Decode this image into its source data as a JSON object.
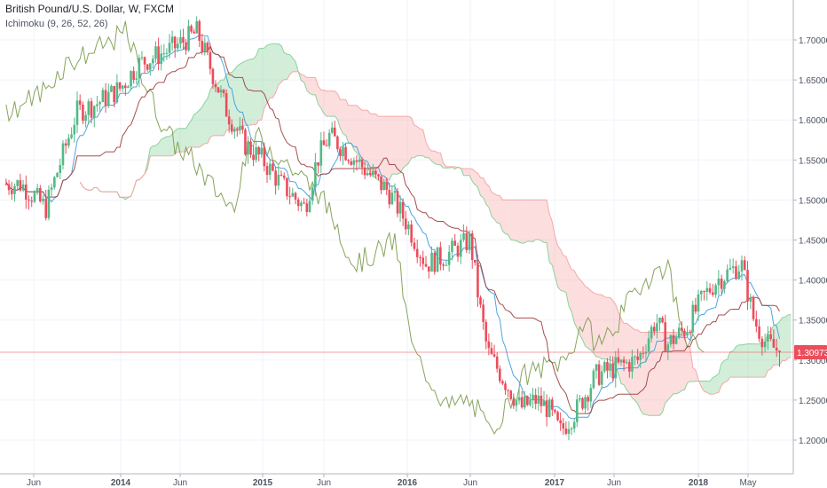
{
  "header": {
    "title": "British Pound/U.S. Dollar, W, FXCM",
    "indicator": "Ichimoku (9, 26, 52, 26)"
  },
  "colors": {
    "bull": "#53b987",
    "bear": "#eb4d5c",
    "tenkan": "#3e9adf",
    "kijun": "#9b3b3b",
    "chikou": "#7a9a4a",
    "cloud_bull": "#7fcf93",
    "cloud_bear": "#f6a0a0",
    "price_line": "#eb4d5c",
    "grid": "#f0f3fa",
    "axis_text": "#4c525e"
  },
  "chart_data": {
    "type": "candlestick",
    "title": "British Pound/U.S. Dollar, W, FXCM",
    "indicator": "Ichimoku (9, 26, 52, 26)",
    "ylim": [
      1.16,
      1.76
    ],
    "y_ticks": [
      "1.70000",
      "1.65000",
      "1.60000",
      "1.55000",
      "1.50000",
      "1.45000",
      "1.40000",
      "1.35000",
      "1.30000",
      "1.25000",
      "1.20000"
    ],
    "x_ticks": [
      "Jun",
      "2014",
      "Jun",
      "2015",
      "Jun",
      "2016",
      "Jun",
      "2017",
      "Jun",
      "2018",
      "May"
    ],
    "last_price": "1.30973",
    "close_path": [
      [
        "2013-04-01",
        1.52
      ],
      [
        "2013-05-01",
        1.52
      ],
      [
        "2013-07-01",
        1.49
      ],
      [
        "2013-08-01",
        1.54
      ],
      [
        "2013-09-15",
        1.61
      ],
      [
        "2013-11-01",
        1.62
      ],
      [
        "2014-01-01",
        1.64
      ],
      [
        "2014-02-15",
        1.67
      ],
      [
        "2014-04-01",
        1.68
      ],
      [
        "2014-05-15",
        1.69
      ],
      [
        "2014-07-15",
        1.71
      ],
      [
        "2014-08-15",
        1.67
      ],
      [
        "2014-10-01",
        1.61
      ],
      [
        "2014-11-15",
        1.57
      ],
      [
        "2015-01-01",
        1.55
      ],
      [
        "2015-02-15",
        1.52
      ],
      [
        "2015-04-15",
        1.49
      ],
      [
        "2015-05-15",
        1.55
      ],
      [
        "2015-06-15",
        1.58
      ],
      [
        "2015-08-01",
        1.56
      ],
      [
        "2015-10-01",
        1.53
      ],
      [
        "2015-11-15",
        1.51
      ],
      [
        "2016-01-01",
        1.47
      ],
      [
        "2016-02-15",
        1.42
      ],
      [
        "2016-04-01",
        1.43
      ],
      [
        "2016-06-01",
        1.45
      ],
      [
        "2016-06-24",
        1.37
      ],
      [
        "2016-07-15",
        1.31
      ],
      [
        "2016-10-07",
        1.24
      ],
      [
        "2016-11-15",
        1.25
      ],
      [
        "2016-12-15",
        1.24
      ],
      [
        "2017-01-15",
        1.21
      ],
      [
        "2017-03-01",
        1.24
      ],
      [
        "2017-04-15",
        1.28
      ],
      [
        "2017-06-01",
        1.29
      ],
      [
        "2017-08-01",
        1.3
      ],
      [
        "2017-09-15",
        1.35
      ],
      [
        "2017-10-15",
        1.32
      ],
      [
        "2017-12-01",
        1.34
      ],
      [
        "2018-01-15",
        1.38
      ],
      [
        "2018-02-15",
        1.4
      ],
      [
        "2018-04-15",
        1.42
      ],
      [
        "2018-05-15",
        1.35
      ],
      [
        "2018-06-15",
        1.32
      ],
      [
        "2018-07-20",
        1.31
      ]
    ]
  }
}
